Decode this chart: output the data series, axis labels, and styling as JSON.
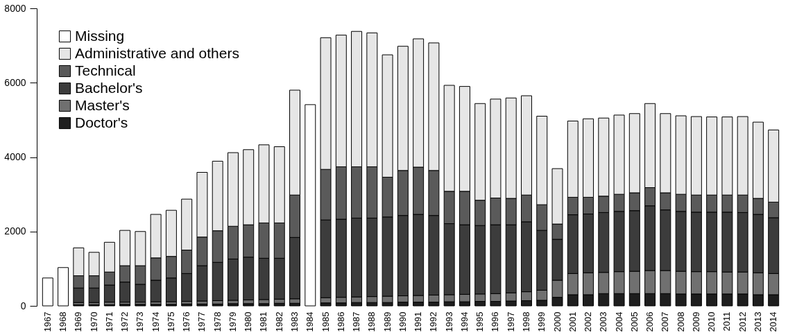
{
  "chart_data": {
    "type": "bar",
    "stacked": true,
    "categories": [
      "1967",
      "1968",
      "1969",
      "1970",
      "1971",
      "1972",
      "1973",
      "1974",
      "1975",
      "1976",
      "1977",
      "1978",
      "1979",
      "1980",
      "1981",
      "1982",
      "1983",
      "1984",
      "1985",
      "1986",
      "1987",
      "1988",
      "1989",
      "1990",
      "1991",
      "1992",
      "1993",
      "1994",
      "1995",
      "1996",
      "1997",
      "1998",
      "1999",
      "2000",
      "2001",
      "2002",
      "2003",
      "2004",
      "2005",
      "2006",
      "2007",
      "2008",
      "2009",
      "2010",
      "2011",
      "2012",
      "2013",
      "2014"
    ],
    "series": [
      {
        "name": "Doctor's",
        "color": "#1e1e1e",
        "values": [
          null,
          null,
          30,
          30,
          30,
          40,
          40,
          40,
          40,
          50,
          50,
          50,
          60,
          60,
          60,
          70,
          70,
          null,
          80,
          80,
          90,
          90,
          90,
          100,
          100,
          100,
          110,
          110,
          120,
          120,
          130,
          140,
          150,
          230,
          300,
          300,
          330,
          330,
          330,
          330,
          330,
          320,
          320,
          320,
          320,
          320,
          300,
          300
        ]
      },
      {
        "name": "Master's",
        "color": "#707070",
        "values": [
          null,
          null,
          60,
          60,
          70,
          60,
          60,
          70,
          70,
          70,
          80,
          90,
          90,
          100,
          110,
          110,
          120,
          null,
          140,
          150,
          150,
          160,
          170,
          170,
          180,
          190,
          190,
          200,
          200,
          210,
          220,
          240,
          270,
          460,
          570,
          590,
          570,
          590,
          600,
          620,
          620,
          610,
          600,
          600,
          590,
          590,
          590,
          570
        ]
      },
      {
        "name": "Bachelor's",
        "color": "#3c3c3c",
        "values": [
          null,
          null,
          390,
          390,
          460,
          540,
          480,
          580,
          640,
          750,
          950,
          1030,
          1110,
          1150,
          1110,
          1100,
          1650,
          null,
          2090,
          2100,
          2120,
          2110,
          2130,
          2160,
          2180,
          2140,
          1910,
          1870,
          1840,
          1850,
          1830,
          1880,
          1610,
          1100,
          1580,
          1580,
          1610,
          1620,
          1630,
          1740,
          1630,
          1610,
          1600,
          1600,
          1610,
          1600,
          1570,
          1500
        ]
      },
      {
        "name": "Technical",
        "color": "#5a5a5a",
        "values": [
          null,
          null,
          330,
          330,
          350,
          440,
          500,
          600,
          580,
          630,
          770,
          850,
          880,
          870,
          950,
          950,
          1140,
          null,
          1360,
          1410,
          1380,
          1380,
          1070,
          1210,
          1270,
          1210,
          870,
          900,
          680,
          720,
          710,
          720,
          690,
          410,
          470,
          450,
          440,
          460,
          480,
          490,
          460,
          460,
          460,
          460,
          460,
          470,
          430,
          420
        ]
      },
      {
        "name": "Administrative and others",
        "color": "#e6e6e6",
        "values": [
          null,
          null,
          750,
          630,
          800,
          950,
          920,
          1170,
          1240,
          1370,
          1740,
          1870,
          1980,
          2020,
          2100,
          2050,
          2820,
          null,
          3540,
          3540,
          3640,
          3600,
          3290,
          3340,
          3450,
          3430,
          2850,
          2820,
          2600,
          2660,
          2700,
          2670,
          2380,
          1490,
          2050,
          2110,
          2100,
          2130,
          2130,
          2260,
          2130,
          2110,
          2110,
          2100,
          2100,
          2110,
          2050,
          1940
        ]
      },
      {
        "name": "Missing",
        "color": "#ffffff",
        "values": [
          750,
          1030,
          null,
          null,
          null,
          null,
          null,
          null,
          null,
          null,
          null,
          null,
          null,
          null,
          null,
          null,
          null,
          5410,
          null,
          null,
          null,
          null,
          null,
          null,
          null,
          null,
          null,
          null,
          null,
          null,
          null,
          null,
          null,
          null,
          null,
          null,
          null,
          null,
          null,
          null,
          null,
          null,
          null,
          null,
          null,
          null,
          null,
          null
        ]
      }
    ],
    "ylim": [
      0,
      8000
    ],
    "yticks": [
      0,
      2000,
      4000,
      6000,
      8000
    ],
    "grid": false,
    "legend": "top left"
  }
}
